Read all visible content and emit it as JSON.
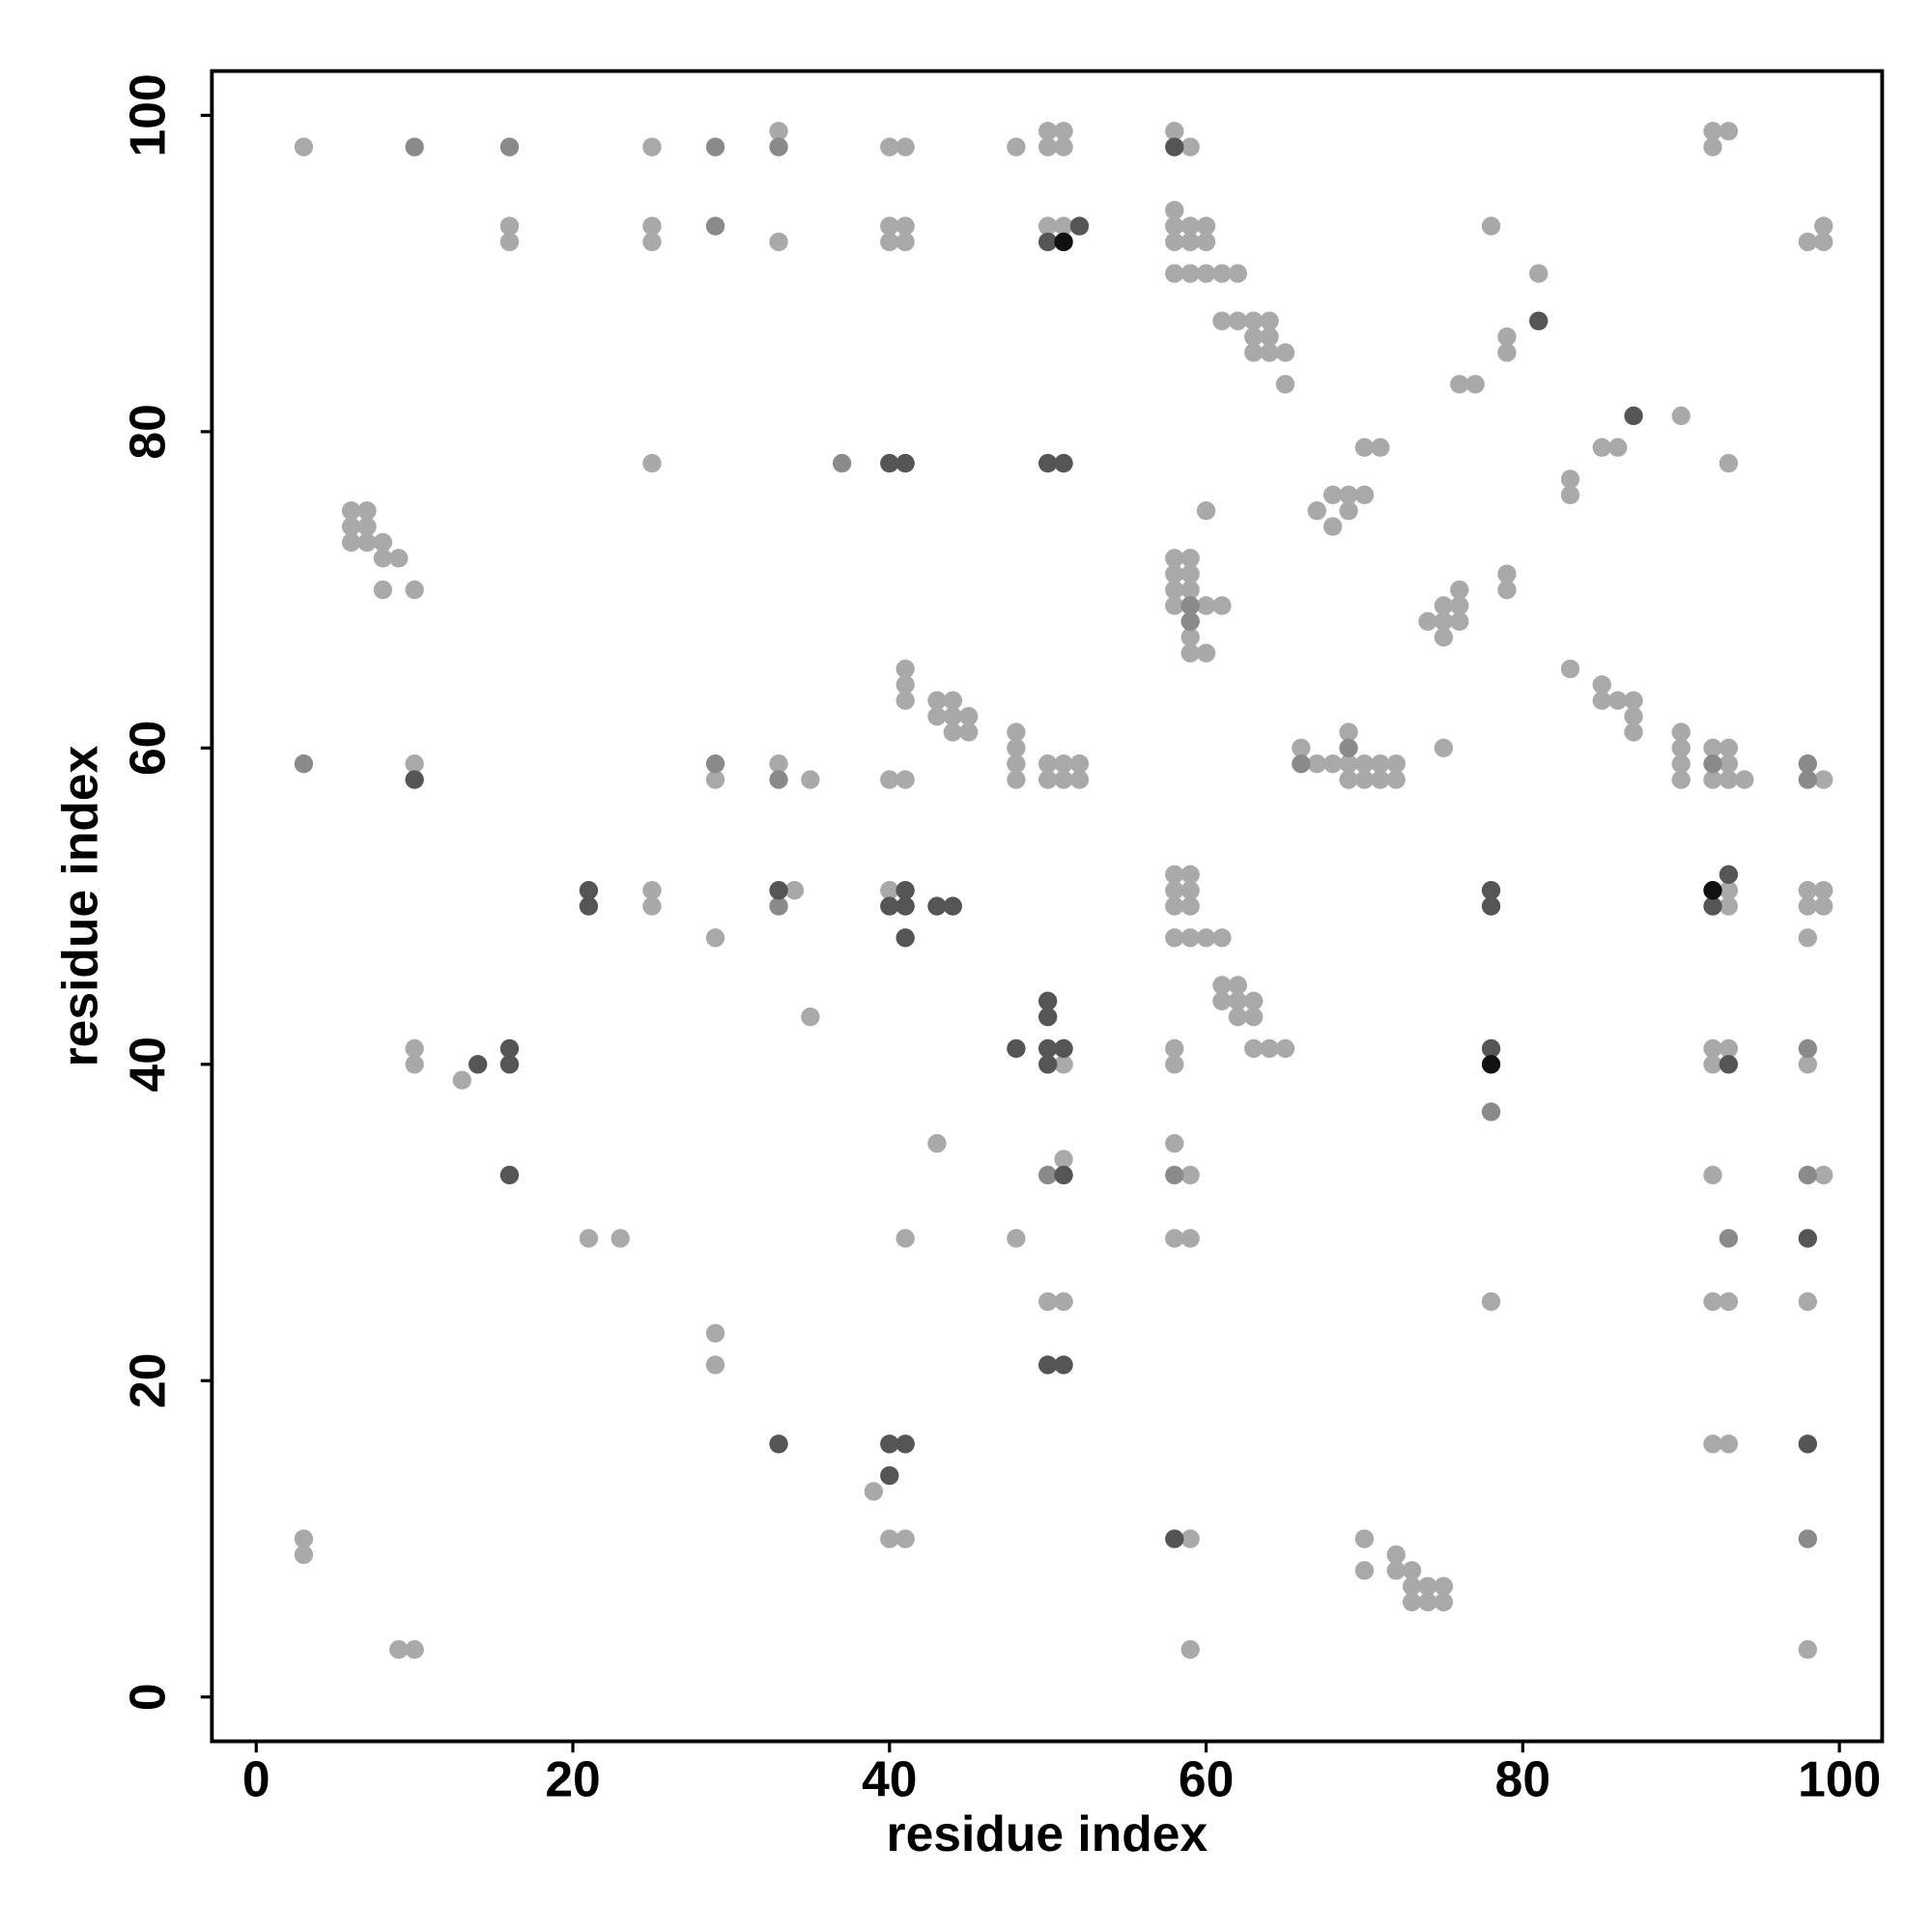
{
  "chart_data": {
    "type": "scatter",
    "x_label": "residue index",
    "y_label": "residue index",
    "xlim": [
      -2.8,
      102.7
    ],
    "ylim": [
      -2.8,
      102.8
    ],
    "xticks": [
      0,
      20,
      40,
      60,
      80,
      100
    ],
    "yticks": [
      0,
      20,
      40,
      60,
      80,
      100
    ],
    "series": [
      {
        "color": "#a9a9a9",
        "x": [
          33,
          50,
          51,
          58,
          92,
          93,
          3,
          25,
          40,
          41,
          48,
          50,
          51,
          59,
          92,
          58,
          16,
          25,
          40,
          41,
          50,
          51,
          58,
          59,
          60,
          78,
          99,
          16,
          25,
          33,
          40,
          41,
          58,
          59,
          60,
          98,
          99,
          58,
          59,
          60,
          61,
          62,
          81,
          61,
          62,
          63,
          64,
          63,
          64,
          79,
          63,
          64,
          65,
          79,
          65,
          76,
          77,
          90,
          70,
          71,
          85,
          86,
          25,
          93,
          83,
          68,
          69,
          70,
          83,
          6,
          7,
          60,
          67,
          69,
          6,
          7,
          68,
          6,
          7,
          8,
          8,
          9,
          58,
          59,
          58,
          59,
          79,
          8,
          10,
          58,
          59,
          76,
          79,
          58,
          60,
          61,
          75,
          76,
          74,
          75,
          76,
          59,
          75,
          59,
          60,
          41,
          83,
          41,
          85,
          41,
          43,
          44,
          85,
          86,
          87,
          43,
          44,
          45,
          87,
          44,
          45,
          48,
          69,
          87,
          90,
          48,
          66,
          75,
          90,
          92,
          93,
          10,
          33,
          48,
          50,
          51,
          52,
          67,
          68,
          69,
          70,
          71,
          72,
          90,
          93,
          29,
          35,
          40,
          41,
          48,
          50,
          51,
          52,
          69,
          70,
          71,
          72,
          90,
          92,
          93,
          94,
          99,
          58,
          59,
          25,
          34,
          40,
          58,
          59,
          93,
          98,
          99,
          25,
          58,
          59,
          93,
          98,
          99,
          29,
          58,
          59,
          60,
          61,
          98,
          61,
          62,
          61,
          62,
          63,
          35,
          62,
          63,
          10,
          58,
          63,
          64,
          65,
          92,
          93,
          10,
          51,
          58,
          92,
          98,
          13,
          43,
          58,
          51,
          59,
          92,
          99,
          21,
          23,
          41,
          48,
          58,
          59,
          50,
          51,
          78,
          92,
          93,
          98,
          29,
          29,
          92,
          93,
          39,
          3,
          40,
          41,
          59,
          70,
          3,
          72,
          70,
          72,
          73,
          73,
          74,
          75,
          73,
          74,
          75,
          9,
          10,
          59,
          98
        ],
        "values": [
          99,
          99,
          99,
          99,
          99,
          99,
          98,
          98,
          98,
          98,
          98,
          98,
          98,
          98,
          98,
          94,
          93,
          93,
          93,
          93,
          93,
          93,
          93,
          93,
          93,
          93,
          93,
          92,
          92,
          92,
          92,
          92,
          92,
          92,
          92,
          92,
          92,
          90,
          90,
          90,
          90,
          90,
          90,
          87,
          87,
          87,
          87,
          86,
          86,
          86,
          85,
          85,
          85,
          85,
          83,
          83,
          83,
          81,
          79,
          79,
          79,
          79,
          78,
          78,
          77,
          76,
          76,
          76,
          76,
          75,
          75,
          75,
          75,
          75,
          74,
          74,
          74,
          73,
          73,
          73,
          72,
          72,
          72,
          72,
          71,
          71,
          71,
          70,
          70,
          70,
          70,
          70,
          70,
          69,
          69,
          69,
          69,
          69,
          68,
          68,
          68,
          67,
          67,
          66,
          66,
          65,
          65,
          64,
          64,
          63,
          63,
          63,
          63,
          63,
          63,
          62,
          62,
          62,
          62,
          61,
          61,
          61,
          61,
          61,
          61,
          60,
          60,
          60,
          60,
          60,
          60,
          59,
          59,
          59,
          59,
          59,
          59,
          59,
          59,
          59,
          59,
          59,
          59,
          59,
          59,
          58,
          58,
          58,
          58,
          58,
          58,
          58,
          58,
          58,
          58,
          58,
          58,
          58,
          58,
          58,
          58,
          58,
          52,
          52,
          51,
          51,
          51,
          51,
          51,
          51,
          51,
          51,
          50,
          50,
          50,
          50,
          50,
          50,
          48,
          48,
          48,
          48,
          48,
          48,
          45,
          45,
          44,
          44,
          44,
          43,
          43,
          43,
          41,
          41,
          41,
          41,
          41,
          41,
          41,
          40,
          40,
          40,
          40,
          40,
          39,
          35,
          35,
          34,
          33,
          33,
          33,
          29,
          29,
          29,
          29,
          29,
          29,
          25,
          25,
          25,
          25,
          25,
          25,
          23,
          21,
          16,
          16,
          13,
          10,
          10,
          10,
          10,
          10,
          9,
          9,
          8,
          8,
          8,
          7,
          7,
          7,
          6,
          6,
          6,
          3,
          3,
          3,
          3
        ]
      },
      {
        "color": "#8a8a8a",
        "x": [
          10,
          16,
          29,
          33,
          29,
          37,
          59,
          59,
          3,
          29,
          66,
          92,
          98,
          33,
          98,
          69,
          33,
          98,
          78,
          50,
          58,
          98,
          93,
          98
        ],
        "values": [
          98,
          98,
          98,
          98,
          93,
          78,
          69,
          68,
          59,
          59,
          59,
          59,
          59,
          58,
          58,
          60,
          50,
          41,
          37,
          33,
          33,
          33,
          29,
          10
        ]
      },
      {
        "color": "#555555",
        "x": [
          58,
          52,
          50,
          81,
          87,
          40,
          41,
          50,
          51,
          10,
          93,
          21,
          33,
          41,
          78,
          21,
          40,
          41,
          43,
          44,
          78,
          92,
          41,
          50,
          50,
          16,
          48,
          50,
          51,
          78,
          14,
          16,
          50,
          93,
          16,
          51,
          98,
          50,
          51,
          33,
          40,
          41,
          98,
          40,
          58
        ],
        "values": [
          98,
          93,
          92,
          87,
          81,
          78,
          78,
          78,
          78,
          58,
          52,
          51,
          51,
          51,
          51,
          50,
          50,
          50,
          50,
          50,
          50,
          50,
          48,
          44,
          43,
          41,
          41,
          41,
          41,
          41,
          40,
          40,
          40,
          40,
          33,
          33,
          29,
          21,
          21,
          16,
          16,
          16,
          16,
          14,
          10
        ]
      },
      {
        "color": "#111111",
        "x": [
          51,
          92,
          78
        ],
        "values": [
          92,
          51,
          40
        ]
      }
    ]
  }
}
